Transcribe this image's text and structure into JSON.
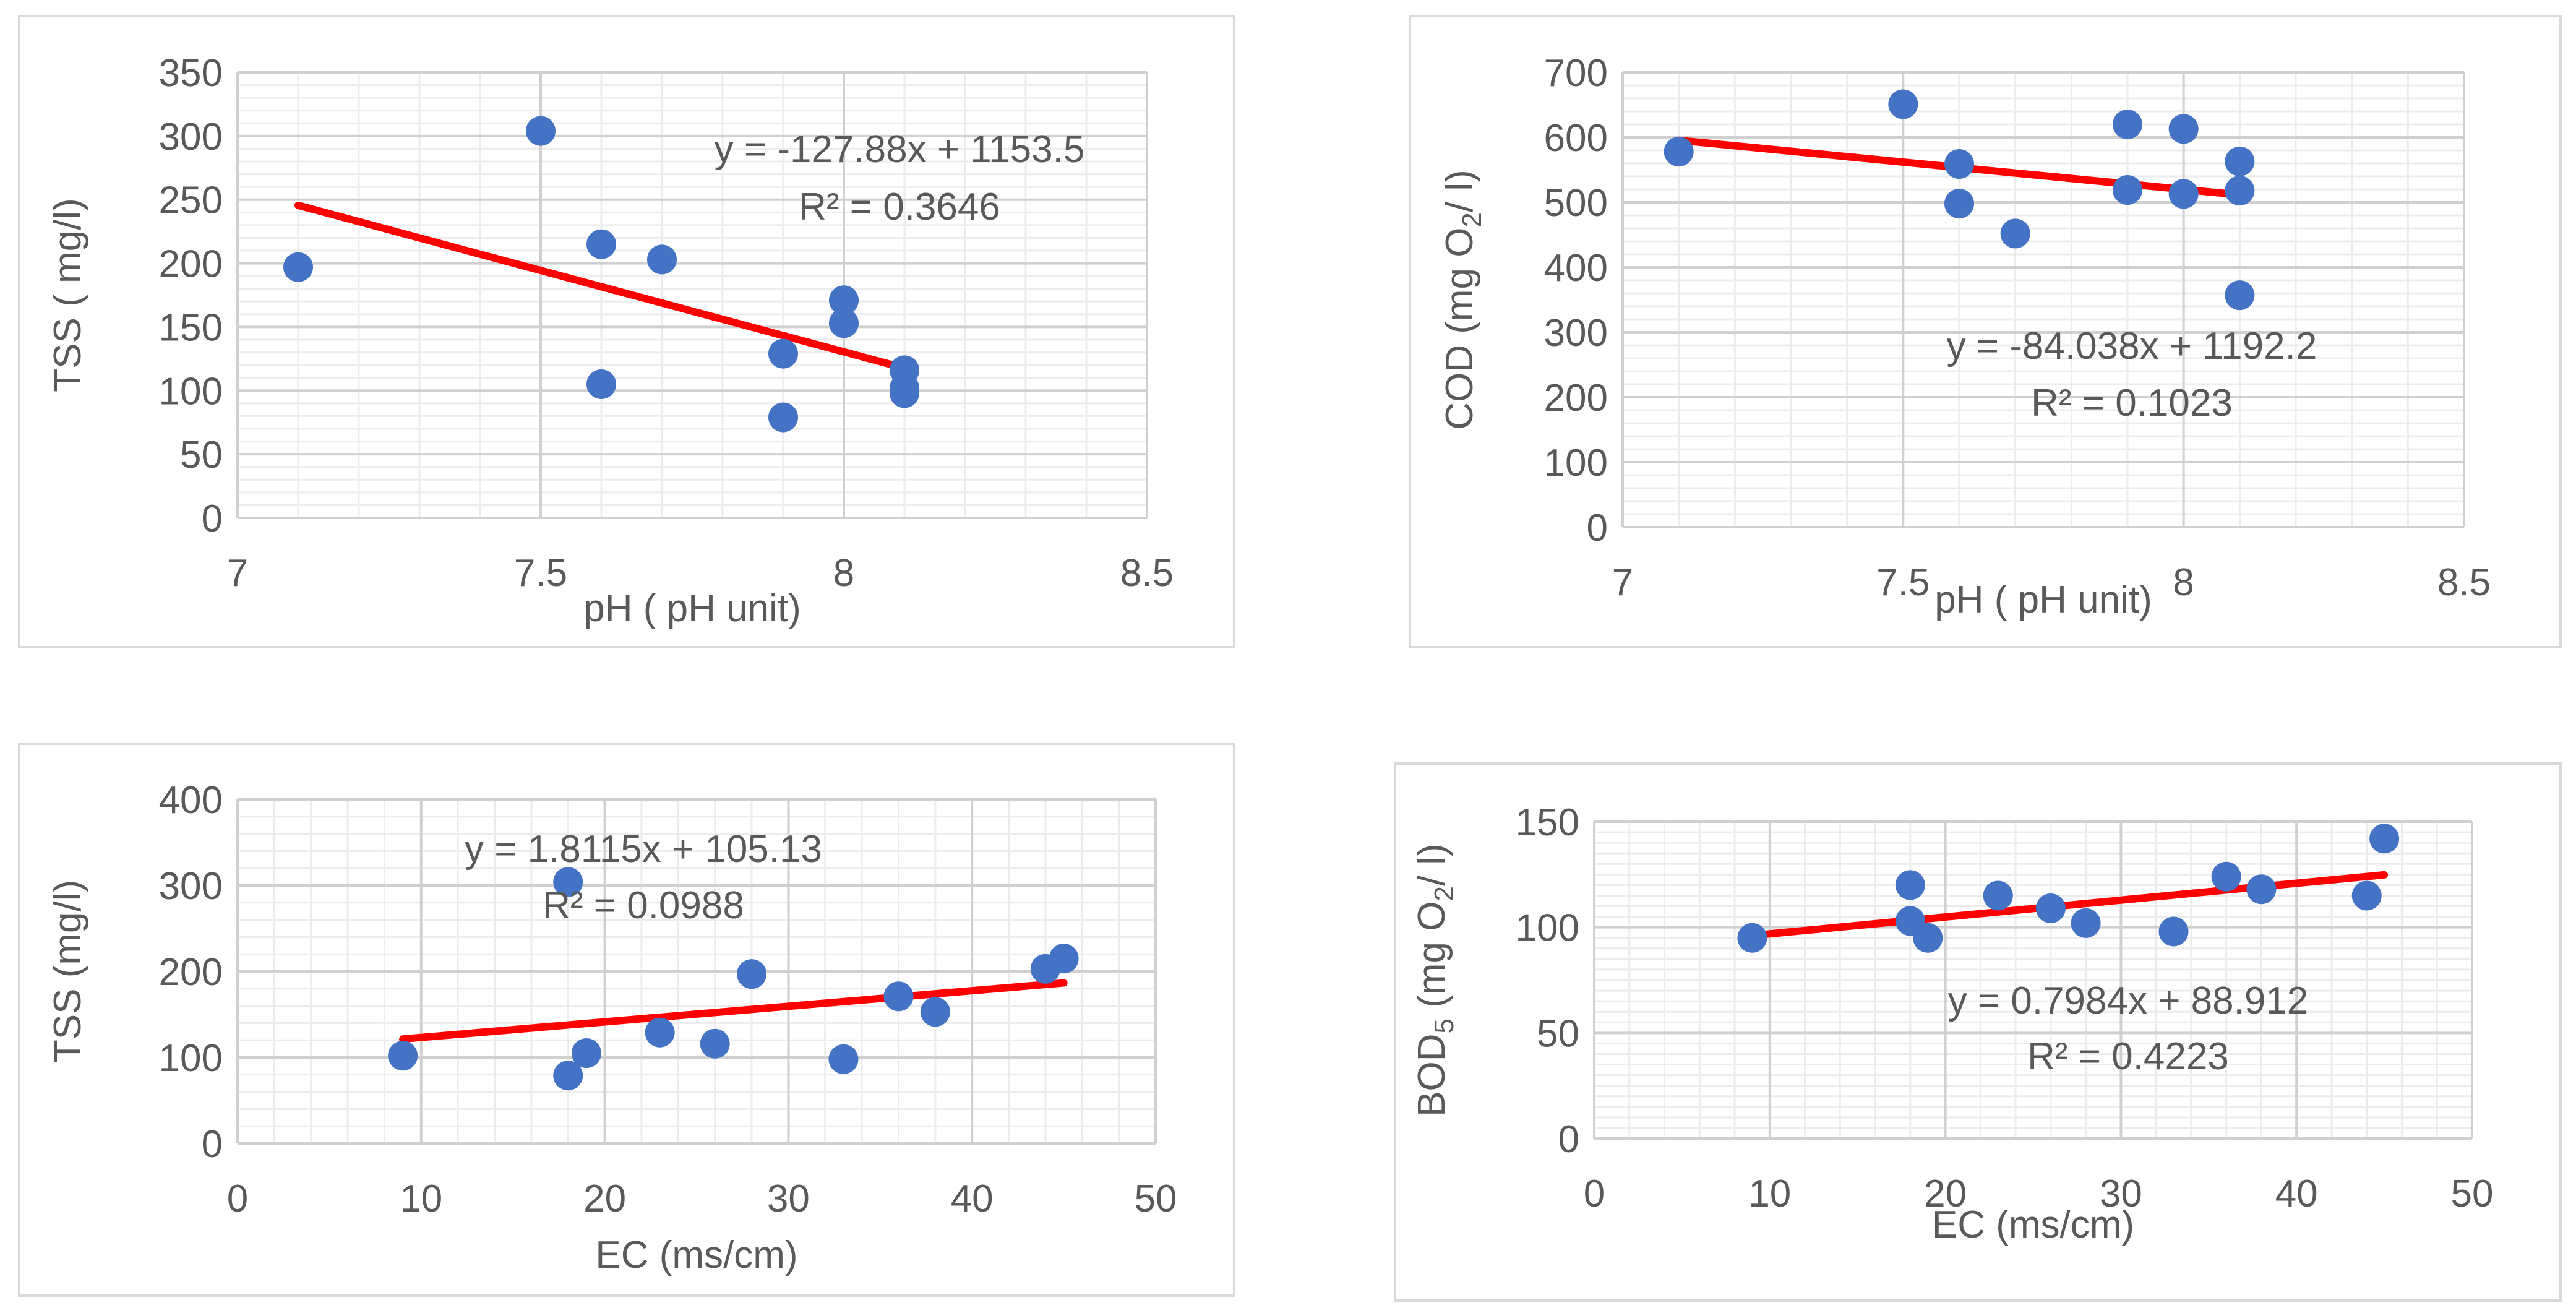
{
  "chart_data": [
    {
      "type": "scatter",
      "xlabel": "pH ( pH unit)",
      "ylabel": "TSS ( mg/l)",
      "xlim": [
        7,
        8.5
      ],
      "ylim": [
        0,
        350
      ],
      "xticks": [
        7,
        7.5,
        8,
        8.5
      ],
      "xtick_labels": [
        "7",
        "7.5",
        "8",
        "8.5"
      ],
      "yticks": [
        0,
        50,
        100,
        150,
        200,
        250,
        300,
        350
      ],
      "ytick_labels": [
        "0",
        "50",
        "100",
        "150",
        "200",
        "250",
        "300",
        "350"
      ],
      "x_minor_step": 0.1,
      "y_minor_step": 10,
      "points": [
        [
          7.1,
          197
        ],
        [
          7.5,
          304
        ],
        [
          7.6,
          215
        ],
        [
          7.6,
          105
        ],
        [
          7.7,
          203
        ],
        [
          7.9,
          129
        ],
        [
          7.9,
          79
        ],
        [
          8.0,
          171
        ],
        [
          8.0,
          153
        ],
        [
          8.1,
          116
        ],
        [
          8.1,
          102
        ],
        [
          8.1,
          98
        ]
      ],
      "trendline": {
        "slope": -127.88,
        "intercept": 1153.5,
        "x_range": [
          7.1,
          8.1
        ],
        "equation": "y = -127.88x + 1153.5",
        "r2": "R² = 0.3646"
      },
      "marker_color": "#4472c4",
      "trend_color": "#ff0000"
    },
    {
      "type": "scatter",
      "xlabel": "pH ( pH unit)",
      "ylabel_main": "COD (mg O",
      "ylabel_sub": "2",
      "ylabel_tail": "/ l)",
      "xlim": [
        7,
        8.5
      ],
      "ylim": [
        0,
        700
      ],
      "xticks": [
        7,
        7.5,
        8,
        8.5
      ],
      "xtick_labels": [
        "7",
        "7.5",
        "8",
        "8.5"
      ],
      "yticks": [
        0,
        100,
        200,
        300,
        400,
        500,
        600,
        700
      ],
      "ytick_labels": [
        "0",
        "100",
        "200",
        "300",
        "400",
        "500",
        "600",
        "700"
      ],
      "x_minor_step": 0.1,
      "y_minor_step": 20,
      "points": [
        [
          7.1,
          578
        ],
        [
          7.5,
          651
        ],
        [
          7.6,
          559
        ],
        [
          7.6,
          498
        ],
        [
          7.7,
          452
        ],
        [
          7.9,
          620
        ],
        [
          7.9,
          519
        ],
        [
          8.0,
          613
        ],
        [
          8.0,
          513
        ],
        [
          8.1,
          563
        ],
        [
          8.1,
          518
        ],
        [
          8.1,
          357
        ]
      ],
      "trendline": {
        "slope": -84.038,
        "intercept": 1192.2,
        "x_range": [
          7.1,
          8.1
        ],
        "equation": "y = -84.038x + 1192.2",
        "r2": "R² = 0.1023"
      },
      "marker_color": "#4472c4",
      "trend_color": "#ff0000"
    },
    {
      "type": "scatter",
      "xlabel": "EC (ms/cm)",
      "ylabel": "TSS (mg/l)",
      "xlim": [
        0,
        50
      ],
      "ylim": [
        0,
        400
      ],
      "xticks": [
        0,
        10,
        20,
        30,
        40,
        50
      ],
      "xtick_labels": [
        "0",
        "10",
        "20",
        "30",
        "40",
        "50"
      ],
      "yticks": [
        0,
        100,
        200,
        300,
        400
      ],
      "ytick_labels": [
        "0",
        "100",
        "200",
        "300",
        "400"
      ],
      "x_minor_step": 2,
      "y_minor_step": 20,
      "points": [
        [
          9,
          102
        ],
        [
          18,
          304
        ],
        [
          18,
          79
        ],
        [
          19,
          105
        ],
        [
          23,
          129
        ],
        [
          26,
          116
        ],
        [
          28,
          197
        ],
        [
          33,
          98
        ],
        [
          36,
          171
        ],
        [
          38,
          153
        ],
        [
          44,
          203
        ],
        [
          45,
          215
        ]
      ],
      "trendline": {
        "slope": 1.8115,
        "intercept": 105.13,
        "x_range": [
          9,
          45
        ],
        "equation": "y = 1.8115x + 105.13",
        "r2": "R² = 0.0988"
      },
      "marker_color": "#4472c4",
      "trend_color": "#ff0000"
    },
    {
      "type": "scatter",
      "xlabel": "EC (ms/cm)",
      "ylabel_main": "BOD",
      "ylabel_sub": "5",
      "ylabel_mid": " (mg O",
      "ylabel_sub2": "2",
      "ylabel_tail": "/ l)",
      "xlim": [
        0,
        50
      ],
      "ylim": [
        0,
        150
      ],
      "xticks": [
        0,
        10,
        20,
        30,
        40,
        50
      ],
      "xtick_labels": [
        "0",
        "10",
        "20",
        "30",
        "40",
        "50"
      ],
      "yticks": [
        0,
        50,
        100,
        150
      ],
      "ytick_labels": [
        "0",
        "50",
        "100",
        "150"
      ],
      "x_minor_step": 2,
      "y_minor_step": 5,
      "points": [
        [
          9,
          95
        ],
        [
          18,
          120
        ],
        [
          18,
          103
        ],
        [
          19,
          95
        ],
        [
          23,
          115
        ],
        [
          26,
          109
        ],
        [
          28,
          102
        ],
        [
          33,
          98
        ],
        [
          36,
          124
        ],
        [
          38,
          118
        ],
        [
          44,
          115
        ],
        [
          45,
          142
        ]
      ],
      "trendline": {
        "slope": 0.7984,
        "intercept": 88.912,
        "x_range": [
          9,
          45
        ],
        "equation": "y = 0.7984x + 88.912",
        "r2": "R² = 0.4223"
      },
      "marker_color": "#4472c4",
      "trend_color": "#ff0000"
    }
  ]
}
